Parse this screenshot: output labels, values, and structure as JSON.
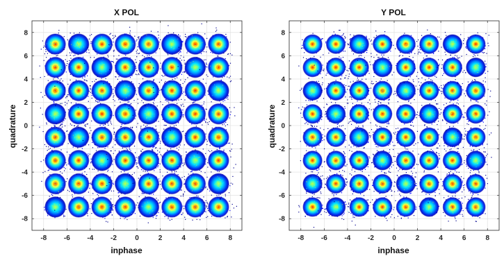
{
  "chart_data": [
    {
      "type": "scatter",
      "variant": "density-constellation",
      "title": "X POL",
      "xlabel": "inphase",
      "ylabel": "quadrature",
      "xlim": [
        -9,
        9
      ],
      "ylim": [
        -9,
        9
      ],
      "xticks": [
        -8,
        -6,
        -4,
        -2,
        0,
        2,
        4,
        6,
        8
      ],
      "yticks": [
        -8,
        -6,
        -4,
        -2,
        0,
        2,
        4,
        6,
        8
      ],
      "grid": true,
      "constellation": "64-QAM",
      "cluster_centers_x": [
        -7,
        -5,
        -3,
        -1,
        1,
        3,
        5,
        7
      ],
      "cluster_centers_y": [
        -7,
        -5,
        -3,
        -1,
        1,
        3,
        5,
        7
      ],
      "cluster_spread": 0.45,
      "colormap": [
        "#00008f",
        "#0000ff",
        "#00a0ff",
        "#00ffff",
        "#80ff80",
        "#ffff00",
        "#ff8000",
        "#ff0000"
      ]
    },
    {
      "type": "scatter",
      "variant": "density-constellation",
      "title": "Y POL",
      "xlabel": "inphase",
      "ylabel": "quadrature",
      "xlim": [
        -9,
        9
      ],
      "ylim": [
        -9,
        9
      ],
      "xticks": [
        -8,
        -6,
        -4,
        -2,
        0,
        2,
        4,
        6,
        8
      ],
      "yticks": [
        -8,
        -6,
        -4,
        -2,
        0,
        2,
        4,
        6,
        8
      ],
      "grid": true,
      "constellation": "64-QAM",
      "cluster_centers_x": [
        -7,
        -5,
        -3,
        -1,
        1,
        3,
        5,
        7
      ],
      "cluster_centers_y": [
        -7,
        -5,
        -3,
        -1,
        1,
        3,
        5,
        7
      ],
      "cluster_spread": 0.42,
      "colormap": [
        "#00008f",
        "#0000ff",
        "#00a0ff",
        "#00ffff",
        "#80ff80",
        "#ffff00",
        "#ff8000",
        "#ff0000"
      ]
    }
  ]
}
